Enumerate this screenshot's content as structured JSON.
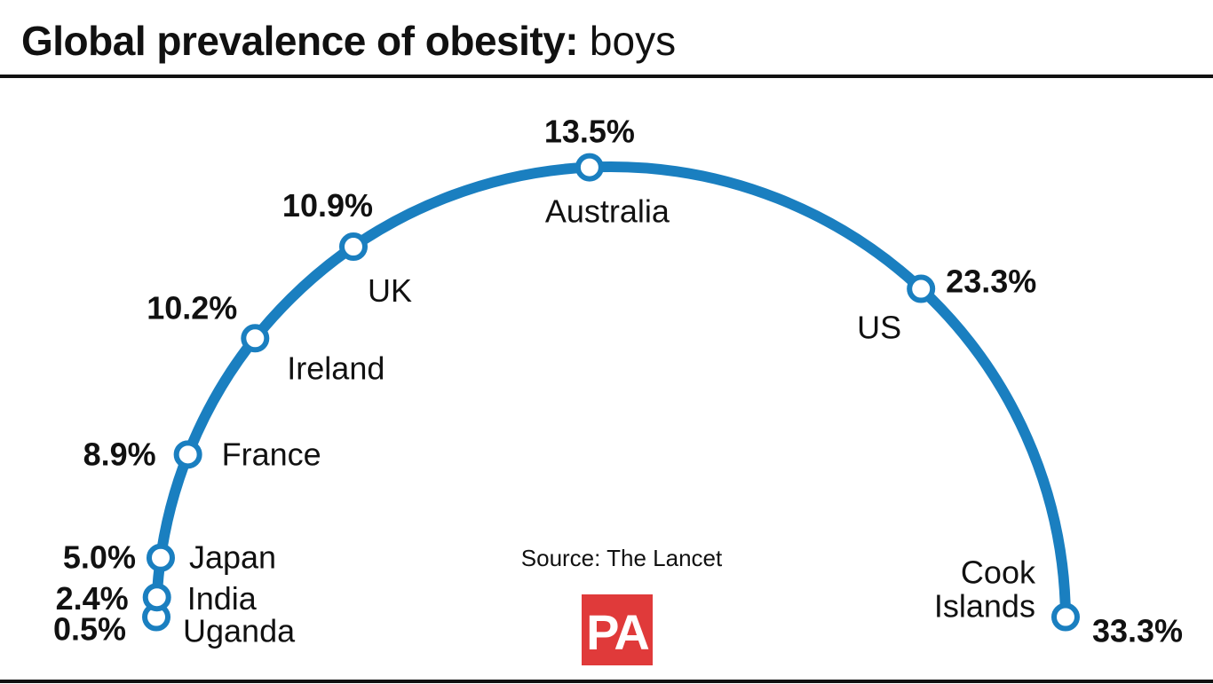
{
  "title": {
    "bold": "Global prevalence of obesity:",
    "light": "boys"
  },
  "source": "Source: The Lancet",
  "logo": "PA",
  "colors": {
    "arc": "#1a7fc0",
    "marker_fill": "#ffffff",
    "text": "#111111",
    "rule": "#111111",
    "logo_bg": "#e03a3a"
  },
  "chart_data": {
    "type": "line",
    "title": "Global prevalence of obesity: boys",
    "unit": "%",
    "points": [
      {
        "country": "Uganda",
        "country_lines": [
          "Uganda"
        ],
        "value": 0.5,
        "label": "0.5%"
      },
      {
        "country": "India",
        "country_lines": [
          "India"
        ],
        "value": 2.4,
        "label": "2.4%"
      },
      {
        "country": "Japan",
        "country_lines": [
          "Japan"
        ],
        "value": 5.0,
        "label": "5.0%"
      },
      {
        "country": "France",
        "country_lines": [
          "France"
        ],
        "value": 8.9,
        "label": "8.9%"
      },
      {
        "country": "Ireland",
        "country_lines": [
          "Ireland"
        ],
        "value": 10.2,
        "label": "10.2%"
      },
      {
        "country": "UK",
        "country_lines": [
          "UK"
        ],
        "value": 10.9,
        "label": "10.9%"
      },
      {
        "country": "Australia",
        "country_lines": [
          "Australia"
        ],
        "value": 13.5,
        "label": "13.5%"
      },
      {
        "country": "US",
        "country_lines": [
          "US"
        ],
        "value": 23.3,
        "label": "23.3%"
      },
      {
        "country": "Cook Islands",
        "country_lines": [
          "Cook",
          "Islands"
        ],
        "value": 33.3,
        "label": "33.3%"
      }
    ]
  }
}
